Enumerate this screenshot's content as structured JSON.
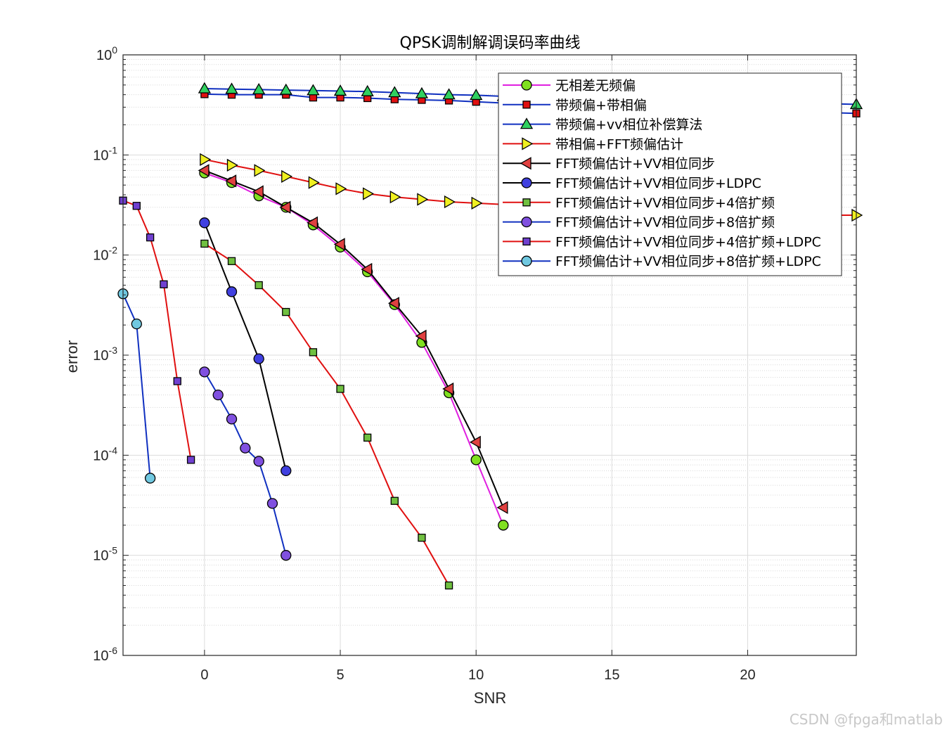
{
  "chart_data": {
    "type": "line",
    "title": "QPSK调制解调误码率曲线",
    "xlabel": "SNR",
    "ylabel": "error",
    "xlim": [
      -3,
      24
    ],
    "ylim": [
      1e-06,
      1
    ],
    "yscale": "log",
    "grid": true,
    "minor_grid": true,
    "legend_position": "top-right",
    "x_ticks": [
      0,
      5,
      10,
      15,
      20
    ],
    "x_tick_labels": [
      "0",
      "5",
      "10",
      "15",
      "20"
    ],
    "y_ticks": [
      1,
      0.1,
      0.01,
      0.001,
      0.0001,
      1e-05,
      1e-06
    ],
    "y_tick_labels": [
      {
        "base": "10",
        "exp": "0"
      },
      {
        "base": "10",
        "exp": "-1"
      },
      {
        "base": "10",
        "exp": "-2"
      },
      {
        "base": "10",
        "exp": "-3"
      },
      {
        "base": "10",
        "exp": "-4"
      },
      {
        "base": "10",
        "exp": "-5"
      },
      {
        "base": "10",
        "exp": "-6"
      }
    ],
    "series": [
      {
        "name": "无相差无频偏",
        "line_color": "#e020e0",
        "marker": "circle",
        "marker_fill": "#80e020",
        "marker_size": 7,
        "x": [
          0,
          1,
          2,
          3,
          4,
          5,
          6,
          7,
          8,
          9,
          10,
          11
        ],
        "y": [
          0.066,
          0.053,
          0.039,
          0.03,
          0.02,
          0.012,
          0.0068,
          0.0032,
          0.00134,
          0.00042,
          9e-05,
          2e-05
        ]
      },
      {
        "name": "带频偏+带相偏",
        "line_color": "#1030c0",
        "marker": "square",
        "marker_fill": "#e01010",
        "marker_size": 5,
        "x": [
          0,
          1,
          2,
          3,
          4,
          5,
          6,
          7,
          8,
          9,
          10,
          11,
          12,
          13,
          14,
          15,
          16,
          17,
          18,
          19,
          20,
          21,
          22,
          23,
          24
        ],
        "y": [
          0.405,
          0.4,
          0.4,
          0.4,
          0.375,
          0.375,
          0.37,
          0.36,
          0.355,
          0.35,
          0.34,
          0.33,
          0.325,
          0.32,
          0.31,
          0.305,
          0.3,
          0.295,
          0.29,
          0.285,
          0.28,
          0.275,
          0.27,
          0.265,
          0.26
        ]
      },
      {
        "name": "带频偏+vv相位补偿算法",
        "line_color": "#1030c0",
        "marker": "triangle-up",
        "marker_fill": "#30d060",
        "marker_size": 8,
        "x": [
          0,
          1,
          2,
          3,
          4,
          5,
          6,
          7,
          8,
          9,
          10,
          11,
          12,
          13,
          14,
          15,
          16,
          17,
          18,
          19,
          20,
          21,
          22,
          23,
          24
        ],
        "y": [
          0.46,
          0.455,
          0.45,
          0.445,
          0.44,
          0.435,
          0.43,
          0.42,
          0.41,
          0.4,
          0.395,
          0.385,
          0.38,
          0.375,
          0.37,
          0.365,
          0.36,
          0.355,
          0.35,
          0.345,
          0.34,
          0.335,
          0.33,
          0.325,
          0.32
        ]
      },
      {
        "name": "带相偏+FFT频偏估计",
        "line_color": "#e01010",
        "marker": "triangle-right",
        "marker_fill": "#f0f020",
        "marker_size": 8,
        "x": [
          0,
          1,
          2,
          3,
          4,
          5,
          6,
          7,
          8,
          9,
          10,
          11,
          12,
          13,
          14,
          15,
          16,
          17,
          18,
          19,
          20,
          21,
          22,
          23,
          24
        ],
        "y": [
          0.09,
          0.079,
          0.07,
          0.061,
          0.053,
          0.046,
          0.041,
          0.038,
          0.036,
          0.034,
          0.033,
          0.032,
          0.031,
          0.03,
          0.029,
          0.029,
          0.028,
          0.028,
          0.027,
          0.027,
          0.026,
          0.026,
          0.026,
          0.025,
          0.025
        ]
      },
      {
        "name": "FFT频偏估计+VV相位同步",
        "line_color": "#000000",
        "marker": "triangle-left",
        "marker_fill": "#e04040",
        "marker_size": 8,
        "x": [
          0,
          1,
          2,
          3,
          4,
          5,
          6,
          7,
          8,
          9,
          10,
          11
        ],
        "y": [
          0.07,
          0.055,
          0.043,
          0.03,
          0.021,
          0.0128,
          0.0072,
          0.0033,
          0.00155,
          0.00046,
          0.000135,
          3e-05
        ]
      },
      {
        "name": "FFT频偏估计+VV相位同步+LDPC",
        "line_color": "#000000",
        "marker": "circle",
        "marker_fill": "#4040e0",
        "marker_size": 7,
        "x": [
          0,
          1,
          2,
          3
        ],
        "y": [
          0.021,
          0.0043,
          0.00092,
          7e-05
        ]
      },
      {
        "name": "FFT频偏估计+VV相位同步+4倍扩频",
        "line_color": "#e01010",
        "marker": "square",
        "marker_fill": "#70c040",
        "marker_size": 5,
        "x": [
          0,
          1,
          2,
          3,
          4,
          5,
          6,
          7,
          8,
          9
        ],
        "y": [
          0.013,
          0.0087,
          0.005,
          0.0027,
          0.00107,
          0.00046,
          0.00015,
          3.5e-05,
          1.5e-05,
          5e-06
        ]
      },
      {
        "name": "FFT频偏估计+VV相位同步+8倍扩频",
        "line_color": "#1030c0",
        "marker": "circle",
        "marker_fill": "#8050e0",
        "marker_size": 7,
        "x": [
          0,
          0.5,
          1,
          1.5,
          2,
          2.5,
          3
        ],
        "y": [
          0.00068,
          0.0004,
          0.00023,
          0.000118,
          8.7e-05,
          3.3e-05,
          1e-05
        ]
      },
      {
        "name": "FFT频偏估计+VV相位同步+4倍扩频+LDPC",
        "line_color": "#e01010",
        "marker": "square",
        "marker_fill": "#7040d0",
        "marker_size": 5,
        "x": [
          -3,
          -2.5,
          -2,
          -1.5,
          -1,
          -0.5
        ],
        "y": [
          0.035,
          0.031,
          0.015,
          0.0051,
          0.00055,
          9e-05
        ]
      },
      {
        "name": "FFT频偏估计+VV相位同步+8倍扩频+LDPC",
        "line_color": "#1030c0",
        "marker": "circle",
        "marker_fill": "#70c8e0",
        "marker_size": 7,
        "x": [
          -3,
          -2.5,
          -2
        ],
        "y": [
          0.0041,
          0.00205,
          5.9e-05
        ]
      }
    ]
  },
  "watermark": "CSDN @fpga和matlab"
}
